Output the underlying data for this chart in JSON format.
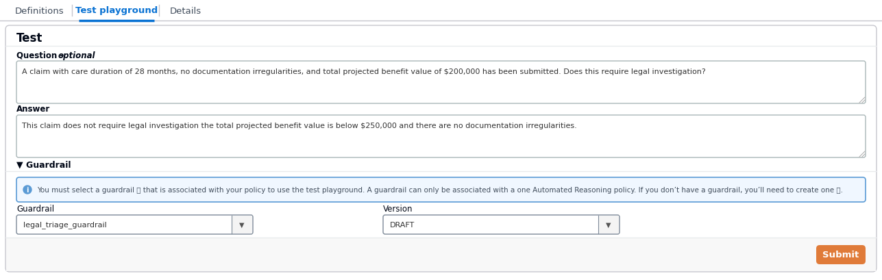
{
  "bg_color": "#f2f3f3",
  "panel_bg": "#ffffff",
  "panel_border": "#c6c6cd",
  "outer_bg": "#ffffff",
  "tabs": [
    "Definitions",
    "Test playground",
    "Details"
  ],
  "active_tab": 1,
  "active_tab_color": "#0972d3",
  "inactive_tab_color": "#414d5c",
  "tab_separator_color": "#c6c6cd",
  "active_underline_color": "#0972d3",
  "section_title": "Test",
  "question_label_main": "Question - ",
  "question_label_italic": "optional",
  "question_text": "A claim with care duration of 28 months, no documentation irregularities, and total projected benefit value of $200,000 has been submitted. Does this require legal investigation?",
  "answer_label": "Answer",
  "answer_text": "This claim does not require legal investigation the total projected benefit value is below $250,000 and there are no documentation irregularities.",
  "guardrail_section": "▼ Guardrail",
  "info_text_pre": "You must select a ",
  "info_link1": "guardrail",
  "info_text_mid": " that is associated with your policy to use the test playground. A guardrail can only be associated with a one Automated Reasoning policy. If you don’t have a guardrail, you’ll need to ",
  "info_link2": "create one",
  "info_text_end": ".",
  "info_bg": "#f0f7ff",
  "info_border": "#5b9bd5",
  "info_icon_color": "#5b9bd5",
  "guardrail_label": "Guardrail",
  "guardrail_value": "legal_triage_guardrail",
  "version_label": "Version",
  "version_value": "DRAFT",
  "submit_label": "Submit",
  "submit_bg": "#e07b39",
  "submit_text_color": "#ffffff",
  "link_color": "#0972d3",
  "dropdown_border": "#7d8998",
  "dropdown_arrow_bg": "#ffffff",
  "textarea_border": "#aab7b8",
  "divider_color": "#e9ebed",
  "label_color": "#000716",
  "small_label_color": "#000716",
  "tab_fontsize": 9.5,
  "section_fontsize": 12,
  "label_fontsize": 8.5,
  "text_fontsize": 8.0,
  "info_fontsize": 7.5
}
